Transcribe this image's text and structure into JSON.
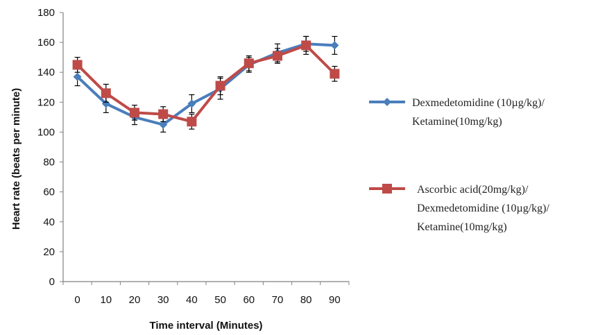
{
  "chart_data": {
    "type": "line",
    "title": "",
    "xlabel": "Time interval (Minutes)",
    "ylabel": "Heart rate (beats per minute)",
    "x": [
      0,
      10,
      20,
      30,
      40,
      50,
      60,
      70,
      80,
      90
    ],
    "xlim": [
      0,
      90
    ],
    "ylim": [
      0,
      180
    ],
    "yticks": [
      0,
      20,
      40,
      60,
      80,
      100,
      120,
      140,
      160,
      180
    ],
    "grid": false,
    "legend_position": "right",
    "series": [
      {
        "name_lines": [
          "Dexmedetomidine (10µg/kg)/",
          "Ketamine(10mg/kg)"
        ],
        "color": "#4a7ebb",
        "marker": "diamond",
        "values": [
          137,
          119,
          110,
          105,
          119,
          129,
          145,
          153,
          159,
          158
        ],
        "error": [
          6,
          6,
          5,
          5,
          6,
          7,
          5,
          6,
          5,
          6
        ]
      },
      {
        "name_lines": [
          "Ascorbic acid(20mg/kg)/",
          "Dexmedetomidine (10µg/kg)/",
          "Ketamine(10mg/kg)"
        ],
        "color": "#be4b48",
        "marker": "square",
        "values": [
          145,
          126,
          113,
          112,
          107,
          131,
          146,
          151,
          158,
          139
        ],
        "error": [
          5,
          6,
          5,
          5,
          5,
          6,
          5,
          5,
          6,
          5
        ]
      }
    ]
  }
}
